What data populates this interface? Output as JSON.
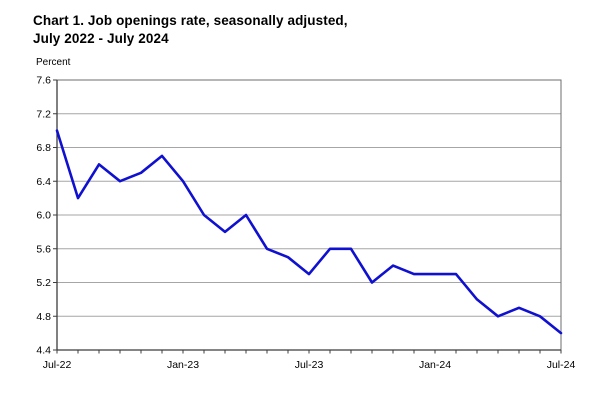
{
  "title": {
    "line1": "Chart 1. Job openings rate, seasonally adjusted,",
    "line2": "July 2022 - July 2024"
  },
  "chart_data": {
    "type": "line",
    "title": "Chart 1. Job openings rate, seasonally adjusted, July 2022 - July 2024",
    "y_axis_label": "Percent",
    "xlabel": "",
    "ylabel": "Percent",
    "ylim": [
      4.4,
      7.6
    ],
    "grid": true,
    "legend": false,
    "x": [
      "Jul-22",
      "Aug-22",
      "Sep-22",
      "Oct-22",
      "Nov-22",
      "Dec-22",
      "Jan-23",
      "Feb-23",
      "Mar-23",
      "Apr-23",
      "May-23",
      "Jun-23",
      "Jul-23",
      "Aug-23",
      "Sep-23",
      "Oct-23",
      "Nov-23",
      "Dec-23",
      "Jan-24",
      "Feb-24",
      "Mar-24",
      "Apr-24",
      "May-24",
      "Jun-24",
      "Jul-24"
    ],
    "values": [
      7.0,
      6.2,
      6.6,
      6.4,
      6.5,
      6.7,
      6.4,
      6.0,
      5.8,
      6.0,
      5.6,
      5.5,
      5.3,
      5.6,
      5.6,
      5.2,
      5.4,
      5.3,
      5.3,
      5.3,
      5.0,
      4.8,
      4.9,
      4.8,
      4.6
    ],
    "y_ticks": [
      7.6,
      7.2,
      6.8,
      6.4,
      6.0,
      5.6,
      5.2,
      4.8,
      4.4
    ],
    "x_tick_labels": [
      "Jul-22",
      "Jan-23",
      "Jul-23",
      "Jan-24",
      "Jul-24"
    ],
    "x_tick_indices": [
      0,
      6,
      12,
      18,
      24
    ],
    "colors": {
      "series_line": "#1010d0",
      "gridline": "#a6a6a6",
      "plot_border": "#6e6e6e",
      "axis": "#3c3c3c",
      "label_text": "#000000"
    }
  }
}
